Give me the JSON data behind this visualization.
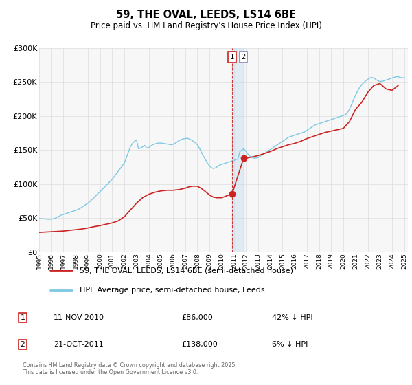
{
  "title": "59, THE OVAL, LEEDS, LS14 6BE",
  "subtitle": "Price paid vs. HM Land Registry's House Price Index (HPI)",
  "ylim": [
    0,
    300000
  ],
  "yticks": [
    0,
    50000,
    100000,
    150000,
    200000,
    250000,
    300000
  ],
  "x_start_year": 1995,
  "x_end_year": 2025,
  "hpi_color": "#7ec8e3",
  "price_color": "#cc2222",
  "sale1_date": "11-NOV-2010",
  "sale1_price": 86000,
  "sale1_label": "42% ↓ HPI",
  "sale1_x": 2010.86,
  "sale2_date": "21-OCT-2011",
  "sale2_price": 138000,
  "sale2_label": "6% ↓ HPI",
  "sale2_x": 2011.8,
  "legend_label_price": "59, THE OVAL, LEEDS, LS14 6BE (semi-detached house)",
  "legend_label_hpi": "HPI: Average price, semi-detached house, Leeds",
  "footer": "Contains HM Land Registry data © Crown copyright and database right 2025.\nThis data is licensed under the Open Government Licence v3.0.",
  "background_color": "#f7f7f7",
  "hpi_data_x": [
    1995.0,
    1995.17,
    1995.33,
    1995.5,
    1995.67,
    1995.83,
    1996.0,
    1996.17,
    1996.33,
    1996.5,
    1996.67,
    1996.83,
    1997.0,
    1997.17,
    1997.33,
    1997.5,
    1997.67,
    1997.83,
    1998.0,
    1998.17,
    1998.33,
    1998.5,
    1998.67,
    1998.83,
    1999.0,
    1999.17,
    1999.33,
    1999.5,
    1999.67,
    1999.83,
    2000.0,
    2000.17,
    2000.33,
    2000.5,
    2000.67,
    2000.83,
    2001.0,
    2001.17,
    2001.33,
    2001.5,
    2001.67,
    2001.83,
    2002.0,
    2002.17,
    2002.33,
    2002.5,
    2002.67,
    2002.83,
    2003.0,
    2003.17,
    2003.33,
    2003.5,
    2003.67,
    2003.83,
    2004.0,
    2004.17,
    2004.33,
    2004.5,
    2004.67,
    2004.83,
    2005.0,
    2005.17,
    2005.33,
    2005.5,
    2005.67,
    2005.83,
    2006.0,
    2006.17,
    2006.33,
    2006.5,
    2006.67,
    2006.83,
    2007.0,
    2007.17,
    2007.33,
    2007.5,
    2007.67,
    2007.83,
    2008.0,
    2008.17,
    2008.33,
    2008.5,
    2008.67,
    2008.83,
    2009.0,
    2009.17,
    2009.33,
    2009.5,
    2009.67,
    2009.83,
    2010.0,
    2010.17,
    2010.33,
    2010.5,
    2010.67,
    2010.83,
    2011.0,
    2011.17,
    2011.33,
    2011.5,
    2011.67,
    2011.83,
    2012.0,
    2012.17,
    2012.33,
    2012.5,
    2012.67,
    2012.83,
    2013.0,
    2013.17,
    2013.33,
    2013.5,
    2013.67,
    2013.83,
    2014.0,
    2014.17,
    2014.33,
    2014.5,
    2014.67,
    2014.83,
    2015.0,
    2015.17,
    2015.33,
    2015.5,
    2015.67,
    2015.83,
    2016.0,
    2016.17,
    2016.33,
    2016.5,
    2016.67,
    2016.83,
    2017.0,
    2017.17,
    2017.33,
    2017.5,
    2017.67,
    2017.83,
    2018.0,
    2018.17,
    2018.33,
    2018.5,
    2018.67,
    2018.83,
    2019.0,
    2019.17,
    2019.33,
    2019.5,
    2019.67,
    2019.83,
    2020.0,
    2020.17,
    2020.33,
    2020.5,
    2020.67,
    2020.83,
    2021.0,
    2021.17,
    2021.33,
    2021.5,
    2021.67,
    2021.83,
    2022.0,
    2022.17,
    2022.33,
    2022.5,
    2022.67,
    2022.83,
    2023.0,
    2023.17,
    2023.33,
    2023.5,
    2023.67,
    2023.83,
    2024.0,
    2024.17,
    2024.33,
    2024.5,
    2024.67,
    2024.83,
    2025.0
  ],
  "hpi_data_y": [
    49500,
    49200,
    49000,
    48800,
    48500,
    48300,
    48500,
    49000,
    50000,
    51500,
    53000,
    54500,
    55500,
    56500,
    57500,
    58500,
    59500,
    60500,
    61500,
    62500,
    64000,
    66000,
    68000,
    70000,
    72000,
    74500,
    77000,
    80000,
    83000,
    86000,
    89000,
    92000,
    95000,
    98000,
    101000,
    104000,
    107000,
    111000,
    115000,
    119000,
    123000,
    127000,
    131000,
    139000,
    147000,
    155000,
    160000,
    163000,
    165000,
    152000,
    153000,
    155000,
    157000,
    153000,
    154000,
    156000,
    158000,
    159000,
    160000,
    160500,
    160500,
    160000,
    159500,
    159000,
    158500,
    158000,
    158500,
    160000,
    162000,
    164000,
    165500,
    166500,
    167000,
    167500,
    166500,
    165000,
    163000,
    161000,
    158000,
    153000,
    147000,
    141000,
    136000,
    131000,
    127000,
    124000,
    123000,
    124000,
    126000,
    128000,
    129000,
    130000,
    131000,
    132000,
    133000,
    134000,
    135000,
    136000,
    137000,
    148000,
    150000,
    152000,
    148000,
    144000,
    141000,
    139000,
    138000,
    138500,
    139000,
    141000,
    143000,
    145000,
    147000,
    149000,
    151000,
    153000,
    155000,
    157000,
    159000,
    161000,
    163000,
    165000,
    167000,
    169000,
    170000,
    171000,
    172000,
    173000,
    174000,
    175000,
    176000,
    177000,
    179000,
    181000,
    183000,
    185000,
    187000,
    188000,
    189000,
    190000,
    191000,
    192000,
    193000,
    194000,
    195000,
    196000,
    197000,
    198000,
    199000,
    200000,
    201000,
    202000,
    205000,
    210000,
    217000,
    224000,
    231000,
    237000,
    242000,
    246000,
    249000,
    252000,
    254000,
    256000,
    257000,
    256000,
    254000,
    252000,
    251000,
    251000,
    252000,
    253000,
    254000,
    255000,
    256000,
    257000,
    258000,
    258000,
    257000,
    256000,
    257000
  ],
  "price_data_x": [
    1995.0,
    1995.5,
    1996.0,
    1996.5,
    1997.0,
    1997.5,
    1998.0,
    1998.5,
    1999.0,
    1999.5,
    2000.0,
    2000.5,
    2001.0,
    2001.5,
    2002.0,
    2002.5,
    2003.0,
    2003.5,
    2004.0,
    2004.5,
    2005.0,
    2005.5,
    2006.0,
    2006.5,
    2007.0,
    2007.3,
    2007.6,
    2008.0,
    2008.3,
    2008.6,
    2009.0,
    2009.3,
    2009.6,
    2010.0,
    2010.3,
    2010.86,
    2011.8,
    2012.0,
    2012.5,
    2013.0,
    2013.5,
    2014.0,
    2014.5,
    2015.0,
    2015.5,
    2016.0,
    2016.5,
    2017.0,
    2017.5,
    2018.0,
    2018.5,
    2019.0,
    2019.5,
    2020.0,
    2020.5,
    2021.0,
    2021.5,
    2022.0,
    2022.5,
    2023.0,
    2023.5,
    2024.0,
    2024.5
  ],
  "price_data_y": [
    29000,
    29500,
    30000,
    30500,
    31000,
    32000,
    33000,
    34000,
    35500,
    37500,
    39000,
    41000,
    43000,
    46000,
    52000,
    62000,
    72000,
    80000,
    85000,
    88000,
    90000,
    91000,
    91000,
    92000,
    94000,
    96000,
    97000,
    97000,
    94000,
    90000,
    84000,
    81000,
    80000,
    80000,
    82000,
    86000,
    138000,
    138000,
    140000,
    142000,
    145000,
    148000,
    152000,
    155000,
    158000,
    160000,
    163000,
    167000,
    170000,
    173000,
    176000,
    178000,
    180000,
    182000,
    192000,
    210000,
    220000,
    235000,
    245000,
    248000,
    240000,
    238000,
    245000
  ]
}
